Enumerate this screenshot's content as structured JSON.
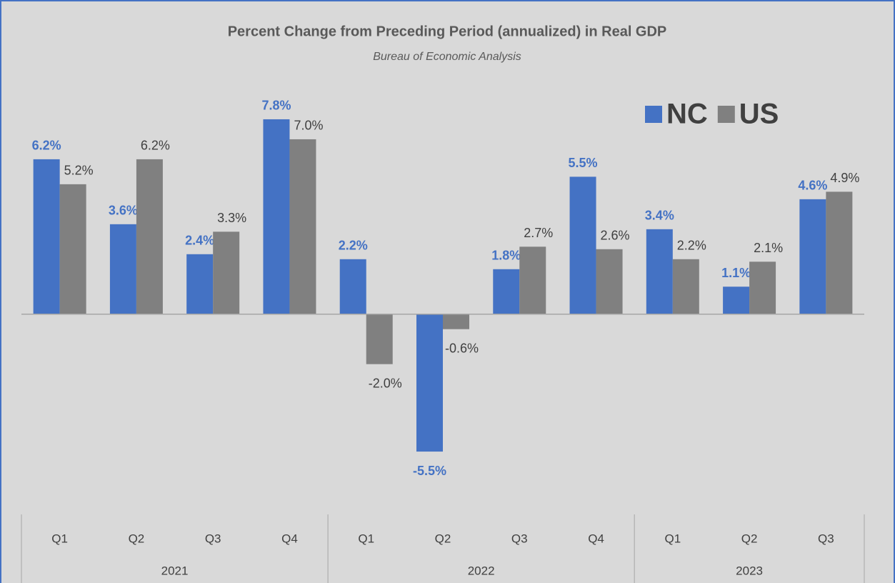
{
  "chart_data": {
    "type": "bar",
    "title": "Percent Change from Preceding Period (annualized) in Real GDP",
    "subtitle": "Bureau of Economic Analysis",
    "groups": [
      {
        "name": "2021",
        "categories": [
          "Q1",
          "Q2",
          "Q3",
          "Q4"
        ]
      },
      {
        "name": "2022",
        "categories": [
          "Q1",
          "Q2",
          "Q3",
          "Q4"
        ]
      },
      {
        "name": "2023",
        "categories": [
          "Q1",
          "Q2",
          "Q3"
        ]
      }
    ],
    "series": [
      {
        "name": "NC",
        "color": "#4472c4",
        "values": [
          6.2,
          3.6,
          2.4,
          7.8,
          2.2,
          -5.5,
          1.8,
          5.5,
          3.4,
          1.1,
          4.6
        ],
        "value_labels": [
          "6.2%",
          "3.6%",
          "2.4%",
          "7.8%",
          "2.2%",
          "-5.5%",
          "1.8%",
          "5.5%",
          "3.4%",
          "1.1%",
          "4.6%"
        ]
      },
      {
        "name": "US",
        "color": "#808080",
        "values": [
          5.2,
          6.2,
          3.3,
          7.0,
          -2.0,
          -0.6,
          2.7,
          2.6,
          2.2,
          2.1,
          4.9
        ],
        "value_labels": [
          "5.2%",
          "6.2%",
          "3.3%",
          "7.0%",
          "-2.0%",
          "-0.6%",
          "2.7%",
          "2.6%",
          "2.2%",
          "2.1%",
          "4.9%"
        ]
      }
    ],
    "ylim": [
      -7.5,
      9
    ],
    "legend": "top-right"
  }
}
